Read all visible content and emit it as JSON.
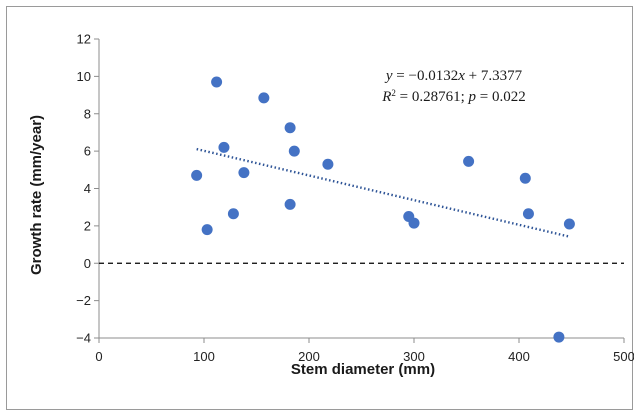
{
  "chart_data": {
    "type": "scatter",
    "xlabel": "Stem diameter (mm)",
    "ylabel": "Growth rate (mm/year)",
    "xlim": [
      0,
      500
    ],
    "ylim": [
      -4,
      12
    ],
    "x_ticks": [
      "0",
      "100",
      "200",
      "300",
      "400",
      "500"
    ],
    "y_ticks": [
      "−4",
      "−2",
      "0",
      "2",
      "4",
      "6",
      "8",
      "10",
      "12"
    ],
    "grid": false,
    "legend": "none",
    "marker_color": "#4472C4",
    "trendline_color": "#2F5597",
    "zero_line_color": "#000000",
    "points": [
      {
        "x": 93,
        "y": 4.7
      },
      {
        "x": 103,
        "y": 1.8
      },
      {
        "x": 112,
        "y": 9.7
      },
      {
        "x": 119,
        "y": 6.2
      },
      {
        "x": 128,
        "y": 2.65
      },
      {
        "x": 138,
        "y": 4.85
      },
      {
        "x": 157,
        "y": 8.85
      },
      {
        "x": 182,
        "y": 7.25
      },
      {
        "x": 182,
        "y": 3.15
      },
      {
        "x": 186,
        "y": 6.0
      },
      {
        "x": 218,
        "y": 5.3
      },
      {
        "x": 295,
        "y": 2.5
      },
      {
        "x": 300,
        "y": 2.15
      },
      {
        "x": 352,
        "y": 5.45
      },
      {
        "x": 406,
        "y": 4.55
      },
      {
        "x": 409,
        "y": 2.65
      },
      {
        "x": 438,
        "y": -3.95
      },
      {
        "x": 448,
        "y": 2.1
      }
    ],
    "trendline": {
      "slope": -0.0132,
      "intercept": 7.3377,
      "x_range": [
        93,
        448
      ],
      "style": "dotted"
    },
    "annotation": {
      "line1": {
        "y": "y",
        "eq": " = −0.0132",
        "x": "x",
        "rest": " + 7.3377"
      },
      "line2": {
        "r": "R",
        "sup": "2",
        "mid": " = 0.28761; ",
        "p": "p",
        "end": " = 0.022"
      }
    }
  }
}
